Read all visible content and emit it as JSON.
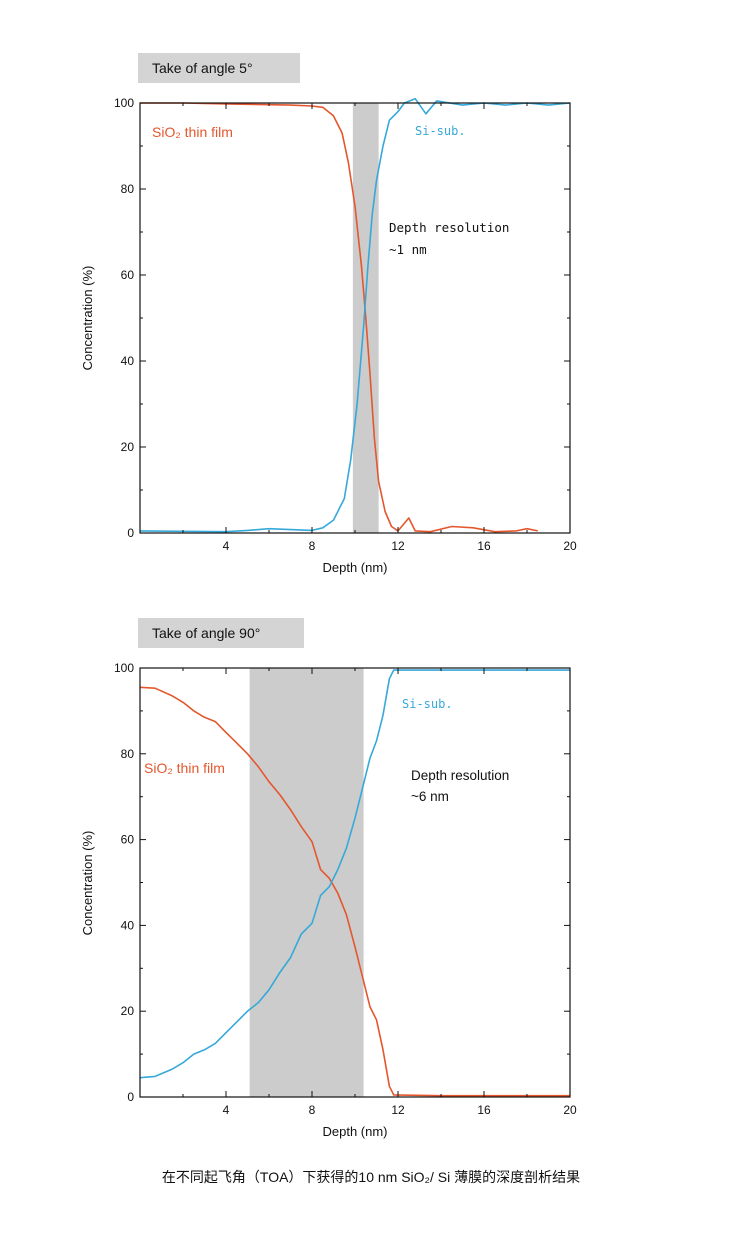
{
  "caption": "在不同起飞角（TOA）下获得的10 nm SiO₂/ Si 薄膜的深度剖析结果",
  "colors": {
    "sio2": "#e4572e",
    "si": "#36a9d9",
    "band": "#cccccc"
  },
  "chart_data": [
    {
      "type": "line",
      "title": "Take of angle 5°",
      "xlabel": "Depth (nm)",
      "ylabel": "Concentration (%)",
      "xlim": [
        0,
        20
      ],
      "ylim": [
        0,
        100
      ],
      "xticks": [
        "4",
        "8",
        "12",
        "16",
        "20"
      ],
      "yticks": [
        "0",
        "20",
        "40",
        "60",
        "80",
        "100"
      ],
      "shaded_region": [
        9.9,
        11.1
      ],
      "annotation": [
        "Depth resolution",
        "~1 nm"
      ],
      "series": [
        {
          "name": "SiO₂ thin film",
          "color_key": "sio2",
          "points": [
            [
              0,
              100
            ],
            [
              2,
              100
            ],
            [
              4,
              99.8
            ],
            [
              6,
              99.6
            ],
            [
              7,
              99.5
            ],
            [
              8,
              99.3
            ],
            [
              8.5,
              99
            ],
            [
              9,
              97
            ],
            [
              9.4,
              93
            ],
            [
              9.7,
              86
            ],
            [
              10,
              76
            ],
            [
              10.3,
              62
            ],
            [
              10.5,
              50
            ],
            [
              10.7,
              37
            ],
            [
              10.9,
              22
            ],
            [
              11.1,
              12
            ],
            [
              11.4,
              5
            ],
            [
              11.7,
              1.5
            ],
            [
              12,
              0.5
            ],
            [
              12.5,
              3.5
            ],
            [
              12.8,
              0.5
            ],
            [
              13.5,
              0.3
            ],
            [
              14.5,
              1.5
            ],
            [
              15.5,
              1.2
            ],
            [
              16.5,
              0.3
            ],
            [
              17.5,
              0.5
            ],
            [
              18,
              1
            ],
            [
              18.5,
              0.5
            ]
          ]
        },
        {
          "name": "Si-sub.",
          "color_key": "si",
          "points": [
            [
              0,
              0.5
            ],
            [
              2,
              0.4
            ],
            [
              4,
              0.3
            ],
            [
              5,
              0.6
            ],
            [
              6,
              1
            ],
            [
              7,
              0.8
            ],
            [
              8,
              0.6
            ],
            [
              8.5,
              1.2
            ],
            [
              9,
              3
            ],
            [
              9.5,
              8
            ],
            [
              9.8,
              17
            ],
            [
              10.1,
              30
            ],
            [
              10.4,
              48
            ],
            [
              10.6,
              62
            ],
            [
              10.8,
              74
            ],
            [
              11,
              82
            ],
            [
              11.3,
              90
            ],
            [
              11.6,
              96
            ],
            [
              12,
              98
            ],
            [
              12.3,
              100
            ],
            [
              12.8,
              101
            ],
            [
              13.3,
              97.5
            ],
            [
              13.8,
              100.5
            ],
            [
              15,
              99.5
            ],
            [
              16,
              100
            ],
            [
              17,
              99.5
            ],
            [
              18,
              100
            ],
            [
              19,
              99.5
            ],
            [
              20,
              100
            ]
          ]
        }
      ]
    },
    {
      "type": "line",
      "title": "Take of angle 90°",
      "xlabel": "Depth (nm)",
      "ylabel": "Concentration (%)",
      "xlim": [
        0,
        20
      ],
      "ylim": [
        0,
        100
      ],
      "xticks": [
        "4",
        "8",
        "12",
        "16",
        "20"
      ],
      "yticks": [
        "0",
        "20",
        "40",
        "60",
        "80",
        "100"
      ],
      "shaded_region": [
        5.1,
        10.4
      ],
      "annotation": [
        "Depth resolution",
        "~6 nm"
      ],
      "series": [
        {
          "name": "SiO₂ thin film",
          "color_key": "sio2",
          "points": [
            [
              0,
              95.5
            ],
            [
              0.7,
              95.3
            ],
            [
              1.5,
              93.5
            ],
            [
              2,
              92
            ],
            [
              2.5,
              90
            ],
            [
              3,
              88.5
            ],
            [
              3.5,
              87.5
            ],
            [
              4,
              85
            ],
            [
              4.5,
              82.5
            ],
            [
              5,
              80
            ],
            [
              5.5,
              77
            ],
            [
              6,
              73.5
            ],
            [
              6.5,
              70.5
            ],
            [
              7,
              67
            ],
            [
              7.5,
              63
            ],
            [
              8,
              59.5
            ],
            [
              8.4,
              53
            ],
            [
              8.8,
              51
            ],
            [
              9.2,
              47.5
            ],
            [
              9.6,
              42.5
            ],
            [
              10,
              35
            ],
            [
              10.4,
              27
            ],
            [
              10.7,
              21
            ],
            [
              11,
              18
            ],
            [
              11.3,
              11
            ],
            [
              11.6,
              2.5
            ],
            [
              11.8,
              0.5
            ],
            [
              14,
              0.3
            ],
            [
              16,
              0.3
            ],
            [
              18,
              0.3
            ],
            [
              20,
              0.3
            ]
          ]
        },
        {
          "name": "Si-sub.",
          "color_key": "si",
          "points": [
            [
              0,
              4.5
            ],
            [
              0.7,
              4.8
            ],
            [
              1.5,
              6.5
            ],
            [
              2,
              8
            ],
            [
              2.5,
              10
            ],
            [
              3,
              11
            ],
            [
              3.5,
              12.5
            ],
            [
              4,
              15
            ],
            [
              4.5,
              17.5
            ],
            [
              5,
              20
            ],
            [
              5.5,
              22
            ],
            [
              6,
              25
            ],
            [
              6.5,
              29
            ],
            [
              7,
              32.5
            ],
            [
              7.5,
              38
            ],
            [
              8,
              40.5
            ],
            [
              8.4,
              47
            ],
            [
              8.8,
              49
            ],
            [
              9.2,
              53
            ],
            [
              9.6,
              58
            ],
            [
              10,
              65
            ],
            [
              10.4,
              73
            ],
            [
              10.7,
              79
            ],
            [
              11,
              83
            ],
            [
              11.3,
              89
            ],
            [
              11.6,
              97.5
            ],
            [
              11.8,
              99.5
            ],
            [
              14,
              99.5
            ],
            [
              16,
              99.5
            ],
            [
              18,
              99.5
            ],
            [
              20,
              99.5
            ]
          ]
        }
      ]
    }
  ]
}
